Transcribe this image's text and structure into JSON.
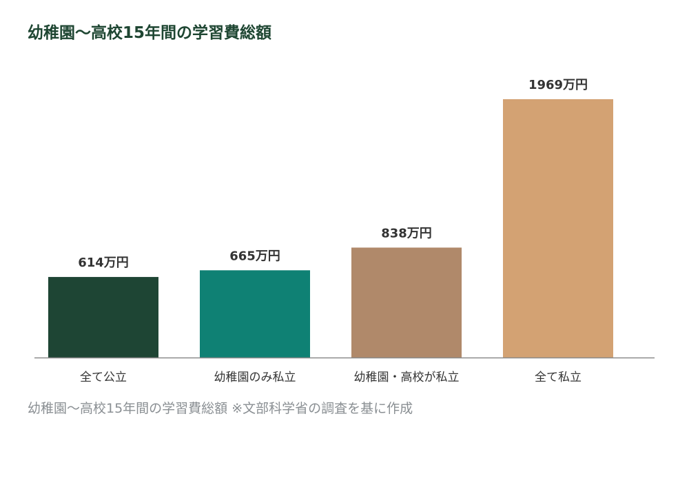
{
  "chart_data": {
    "type": "bar",
    "title": "幼稚園〜高校15年間の学習費総額",
    "xlabel": "",
    "ylabel": "",
    "categories": [
      "全て公立",
      "幼稚園のみ私立",
      "幼稚園・高校が私立",
      "全て私立"
    ],
    "values": [
      614,
      665,
      838,
      1969
    ],
    "value_labels": [
      "614万円",
      "665万円",
      "838万円",
      "1969万円"
    ],
    "colors": [
      "#1e4534",
      "#0f8174",
      "#b0896a",
      "#d3a273"
    ],
    "ylim": [
      0,
      2000
    ],
    "grid": false,
    "legend": "none"
  },
  "caption": "幼稚園〜高校15年間の学習費総額 ※文部科学省の調査を基に作成",
  "colors": {
    "title": "#1e4632",
    "axis": "#8a8a8a",
    "caption": "#8a8f93"
  }
}
